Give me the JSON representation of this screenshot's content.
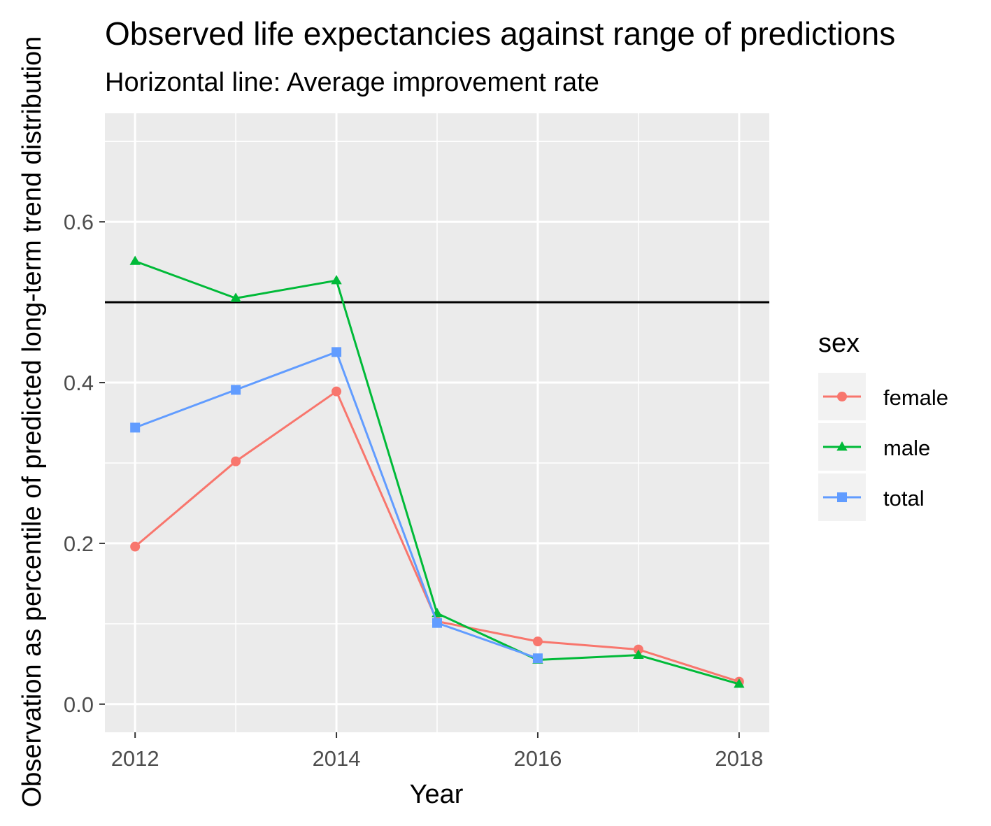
{
  "chart_data": {
    "type": "line",
    "title": "Observed life expectancies against range of predictions",
    "subtitle": "Horizontal line: Average improvement rate",
    "xlabel": "Year",
    "ylabel": "Observation as percentile of predicted long-term trend distribution",
    "xlim": [
      2011.7,
      2018.3
    ],
    "ylim": [
      -0.035,
      0.735
    ],
    "x_ticks": [
      2012,
      2014,
      2016,
      2018
    ],
    "x_tick_labels": [
      "2012",
      "2014",
      "2016",
      "2018"
    ],
    "y_ticks": [
      0.0,
      0.2,
      0.4,
      0.6
    ],
    "y_tick_labels": [
      "0.0",
      "0.2",
      "0.4",
      "0.6"
    ],
    "grid": true,
    "reference_line": {
      "y": 0.5,
      "color": "#000000"
    },
    "legend": {
      "title": "sex",
      "position": "right"
    },
    "series": [
      {
        "name": "female",
        "color": "#F8766D",
        "marker": "circle",
        "x": [
          2012,
          2013,
          2014,
          2015,
          2016,
          2017,
          2018
        ],
        "y": [
          0.196,
          0.302,
          0.389,
          0.103,
          0.078,
          0.068,
          0.028
        ]
      },
      {
        "name": "male",
        "color": "#00BA38",
        "marker": "triangle",
        "x": [
          2012,
          2013,
          2014,
          2015,
          2016,
          2017,
          2018
        ],
        "y": [
          0.551,
          0.505,
          0.527,
          0.113,
          0.055,
          0.061,
          0.025
        ]
      },
      {
        "name": "total",
        "color": "#619CFF",
        "marker": "square",
        "x": [
          2012,
          2013,
          2014,
          2015,
          2016
        ],
        "y": [
          0.344,
          0.391,
          0.438,
          0.101,
          0.057
        ]
      }
    ]
  }
}
